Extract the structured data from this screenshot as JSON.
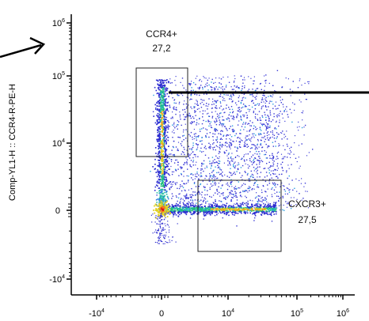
{
  "chart_data": {
    "type": "scatter",
    "title": "",
    "xlabel": "",
    "ylabel": "Comp-YL1-H :: CCR4-R-PE-H",
    "x_axis": {
      "scale": "biexponential",
      "ticks": [
        {
          "base": "-10",
          "exp": "4"
        },
        {
          "base": "0",
          "exp": ""
        },
        {
          "base": "10",
          "exp": "4"
        },
        {
          "base": "10",
          "exp": "5"
        },
        {
          "base": "10",
          "exp": "6"
        }
      ]
    },
    "y_axis": {
      "scale": "biexponential",
      "ticks": [
        {
          "base": "10",
          "exp": "6"
        },
        {
          "base": "10",
          "exp": "5"
        },
        {
          "base": "10",
          "exp": "4"
        },
        {
          "base": "0",
          "exp": ""
        },
        {
          "base": "-10",
          "exp": "4"
        }
      ]
    },
    "gates": [
      {
        "name": "CCR4+",
        "percent": "27,2"
      },
      {
        "name": "CXCR3+",
        "percent": "27,5"
      }
    ],
    "populations": [
      {
        "description": "CCR4+ vertical band",
        "x_center": 0,
        "y_range_decades": [
          3.8,
          5.0
        ]
      },
      {
        "description": "CXCR3+ horizontal band",
        "x_range_decades": [
          3.0,
          4.7
        ],
        "y_center": 0
      },
      {
        "description": "double-negative cluster",
        "x_center": 0,
        "y_center": 0
      }
    ],
    "grid": false,
    "legend": "none"
  }
}
